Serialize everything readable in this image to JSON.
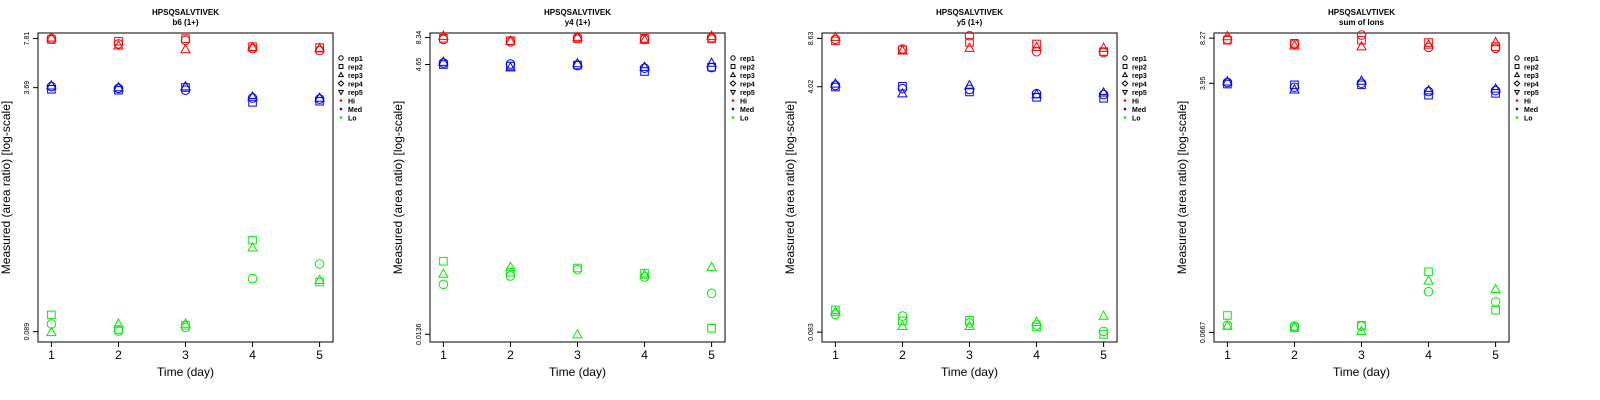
{
  "legend": {
    "reps": [
      "rep1",
      "rep2",
      "rep3",
      "rep4",
      "rep5"
    ],
    "levels": [
      "Hi",
      "Med",
      "Lo"
    ]
  },
  "colors": {
    "Hi": "#ff0000",
    "Med": "#0000ff",
    "Lo": "#00ee00"
  },
  "chart_data": [
    {
      "type": "scatter",
      "title": "HPSQSALVTIVEK",
      "subtitle": "b6 (1+)",
      "xlabel": "Time (day)",
      "ylabel": "Measured (area ratio) [log-scale]",
      "yscale": "log",
      "x_ticks": [
        1,
        2,
        3,
        4,
        5
      ],
      "y_tick_values": [
        7.81,
        3.69,
        0.089
      ],
      "y_tick_labels": [
        "7.81",
        "3.69",
        "0.089"
      ],
      "ylim": [
        0.076,
        8.5
      ],
      "legend_position": "right",
      "series": [
        {
          "level": "Hi",
          "rep": "rep1",
          "x": [
            1,
            2,
            3,
            4,
            5
          ],
          "y": [
            7.8,
            7.2,
            7.6,
            6.7,
            6.5
          ]
        },
        {
          "level": "Hi",
          "rep": "rep2",
          "x": [
            1,
            2,
            3,
            4,
            5
          ],
          "y": [
            7.7,
            7.5,
            7.8,
            6.9,
            6.8
          ]
        },
        {
          "level": "Hi",
          "rep": "rep3",
          "x": [
            1,
            2,
            3,
            4,
            5
          ],
          "y": [
            7.9,
            7.0,
            6.6,
            6.8,
            6.7
          ]
        },
        {
          "level": "Med",
          "rep": "rep1",
          "x": [
            1,
            2,
            3,
            4,
            5
          ],
          "y": [
            3.75,
            3.65,
            3.55,
            3.15,
            3.1
          ]
        },
        {
          "level": "Med",
          "rep": "rep2",
          "x": [
            1,
            2,
            3,
            4,
            5
          ],
          "y": [
            3.6,
            3.55,
            3.7,
            2.95,
            3.0
          ]
        },
        {
          "level": "Med",
          "rep": "rep3",
          "x": [
            1,
            2,
            3,
            4,
            5
          ],
          "y": [
            3.8,
            3.7,
            3.75,
            3.2,
            3.15
          ]
        },
        {
          "level": "Lo",
          "rep": "rep1",
          "x": [
            1,
            2,
            3,
            4,
            5
          ],
          "y": [
            0.1,
            0.09,
            0.095,
            0.2,
            0.25
          ]
        },
        {
          "level": "Lo",
          "rep": "rep2",
          "x": [
            1,
            2,
            3,
            4,
            5
          ],
          "y": [
            0.115,
            0.092,
            0.098,
            0.36,
            0.19
          ]
        },
        {
          "level": "Lo",
          "rep": "rep3",
          "x": [
            1,
            2,
            3,
            4,
            5
          ],
          "y": [
            0.088,
            0.1,
            0.1,
            0.32,
            0.195
          ]
        }
      ]
    },
    {
      "type": "scatter",
      "title": "HPSQSALVTIVEK",
      "subtitle": "y4 (1+)",
      "xlabel": "Time (day)",
      "ylabel": "Measured (area ratio) [log-scale]",
      "yscale": "log",
      "x_ticks": [
        1,
        2,
        3,
        4,
        5
      ],
      "y_tick_values": [
        8.34,
        4.65,
        0.0136
      ],
      "y_tick_labels": [
        "8.34",
        "4.65",
        "0.0136"
      ],
      "ylim": [
        0.0115,
        9.2
      ],
      "legend_position": "right",
      "series": [
        {
          "level": "Hi",
          "rep": "rep1",
          "x": [
            1,
            2,
            3,
            4,
            5
          ],
          "y": [
            8.0,
            7.6,
            8.3,
            8.0,
            8.3
          ]
        },
        {
          "level": "Hi",
          "rep": "rep2",
          "x": [
            1,
            2,
            3,
            4,
            5
          ],
          "y": [
            8.2,
            7.8,
            8.1,
            8.2,
            8.1
          ]
        },
        {
          "level": "Hi",
          "rep": "rep3",
          "x": [
            1,
            2,
            3,
            4,
            5
          ],
          "y": [
            8.6,
            7.7,
            8.4,
            7.9,
            8.6
          ]
        },
        {
          "level": "Med",
          "rep": "rep1",
          "x": [
            1,
            2,
            3,
            4,
            5
          ],
          "y": [
            4.8,
            4.7,
            4.55,
            4.3,
            4.35
          ]
        },
        {
          "level": "Med",
          "rep": "rep2",
          "x": [
            1,
            2,
            3,
            4,
            5
          ],
          "y": [
            4.65,
            4.5,
            4.6,
            4.0,
            4.4
          ]
        },
        {
          "level": "Med",
          "rep": "rep3",
          "x": [
            1,
            2,
            3,
            4,
            5
          ],
          "y": [
            4.9,
            4.35,
            4.75,
            4.4,
            4.8
          ]
        },
        {
          "level": "Lo",
          "rep": "rep1",
          "x": [
            1,
            2,
            3,
            4,
            5
          ],
          "y": [
            0.04,
            0.048,
            0.055,
            0.047,
            0.033
          ]
        },
        {
          "level": "Lo",
          "rep": "rep2",
          "x": [
            1,
            2,
            3,
            4,
            5
          ],
          "y": [
            0.066,
            0.052,
            0.057,
            0.051,
            0.0155
          ]
        },
        {
          "level": "Lo",
          "rep": "rep3",
          "x": [
            1,
            2,
            3,
            4,
            5
          ],
          "y": [
            0.05,
            0.058,
            0.0135,
            0.049,
            0.058
          ]
        }
      ]
    },
    {
      "type": "scatter",
      "title": "HPSQSALVTIVEK",
      "subtitle": "y5 (1+)",
      "xlabel": "Time (day)",
      "ylabel": "Measured (area ratio) [log-scale]",
      "yscale": "log",
      "x_ticks": [
        1,
        2,
        3,
        4,
        5
      ],
      "y_tick_values": [
        8.63,
        4.02,
        0.083
      ],
      "y_tick_labels": [
        "8.63",
        "4.02",
        "0.083"
      ],
      "ylim": [
        0.071,
        9.4
      ],
      "legend_position": "right",
      "series": [
        {
          "level": "Hi",
          "rep": "rep1",
          "x": [
            1,
            2,
            3,
            4,
            5
          ],
          "y": [
            8.5,
            7.3,
            9.0,
            7.0,
            6.9
          ]
        },
        {
          "level": "Hi",
          "rep": "rep2",
          "x": [
            1,
            2,
            3,
            4,
            5
          ],
          "y": [
            8.3,
            7.2,
            8.1,
            7.9,
            7.0
          ]
        },
        {
          "level": "Hi",
          "rep": "rep3",
          "x": [
            1,
            2,
            3,
            4,
            5
          ],
          "y": [
            8.8,
            7.1,
            7.4,
            7.5,
            7.4
          ]
        },
        {
          "level": "Med",
          "rep": "rep1",
          "x": [
            1,
            2,
            3,
            4,
            5
          ],
          "y": [
            4.1,
            3.9,
            3.85,
            3.6,
            3.55
          ]
        },
        {
          "level": "Med",
          "rep": "rep2",
          "x": [
            1,
            2,
            3,
            4,
            5
          ],
          "y": [
            4.0,
            4.05,
            3.7,
            3.4,
            3.35
          ]
        },
        {
          "level": "Med",
          "rep": "rep3",
          "x": [
            1,
            2,
            3,
            4,
            5
          ],
          "y": [
            4.2,
            3.6,
            4.1,
            3.55,
            3.65
          ]
        },
        {
          "level": "Lo",
          "rep": "rep1",
          "x": [
            1,
            2,
            3,
            4,
            5
          ],
          "y": [
            0.11,
            0.107,
            0.096,
            0.093,
            0.084
          ]
        },
        {
          "level": "Lo",
          "rep": "rep2",
          "x": [
            1,
            2,
            3,
            4,
            5
          ],
          "y": [
            0.118,
            0.099,
            0.1,
            0.09,
            0.08
          ]
        },
        {
          "level": "Lo",
          "rep": "rep3",
          "x": [
            1,
            2,
            3,
            4,
            5
          ],
          "y": [
            0.114,
            0.091,
            0.091,
            0.097,
            0.107
          ]
        }
      ]
    },
    {
      "type": "scatter",
      "title": "HPSQSALVTIVEK",
      "subtitle": "sum of Ions",
      "xlabel": "Time (day)",
      "ylabel": "Measured (area ratio) [log-scale]",
      "yscale": "log",
      "x_ticks": [
        1,
        2,
        3,
        4,
        5
      ],
      "y_tick_values": [
        8.27,
        3.95,
        0.0667
      ],
      "y_tick_labels": [
        "8.27",
        "3.95",
        "0.0667"
      ],
      "ylim": [
        0.057,
        9.0
      ],
      "legend_position": "right",
      "series": [
        {
          "level": "Hi",
          "rep": "rep1",
          "x": [
            1,
            2,
            3,
            4,
            5
          ],
          "y": [
            8.1,
            7.5,
            8.7,
            7.1,
            7.0
          ]
        },
        {
          "level": "Hi",
          "rep": "rep2",
          "x": [
            1,
            2,
            3,
            4,
            5
          ],
          "y": [
            8.0,
            7.6,
            8.0,
            7.7,
            7.2
          ]
        },
        {
          "level": "Hi",
          "rep": "rep3",
          "x": [
            1,
            2,
            3,
            4,
            5
          ],
          "y": [
            8.5,
            7.3,
            7.2,
            7.4,
            7.7
          ]
        },
        {
          "level": "Med",
          "rep": "rep1",
          "x": [
            1,
            2,
            3,
            4,
            5
          ],
          "y": [
            4.0,
            3.7,
            3.95,
            3.45,
            3.5
          ]
        },
        {
          "level": "Med",
          "rep": "rep2",
          "x": [
            1,
            2,
            3,
            4,
            5
          ],
          "y": [
            3.9,
            3.85,
            3.85,
            3.25,
            3.35
          ]
        },
        {
          "level": "Med",
          "rep": "rep3",
          "x": [
            1,
            2,
            3,
            4,
            5
          ],
          "y": [
            4.05,
            3.55,
            4.1,
            3.5,
            3.6
          ]
        },
        {
          "level": "Lo",
          "rep": "rep1",
          "x": [
            1,
            2,
            3,
            4,
            5
          ],
          "y": [
            0.075,
            0.074,
            0.074,
            0.13,
            0.11
          ]
        },
        {
          "level": "Lo",
          "rep": "rep2",
          "x": [
            1,
            2,
            3,
            4,
            5
          ],
          "y": [
            0.088,
            0.072,
            0.075,
            0.18,
            0.096
          ]
        },
        {
          "level": "Lo",
          "rep": "rep3",
          "x": [
            1,
            2,
            3,
            4,
            5
          ],
          "y": [
            0.074,
            0.073,
            0.068,
            0.155,
            0.135
          ]
        }
      ]
    }
  ]
}
